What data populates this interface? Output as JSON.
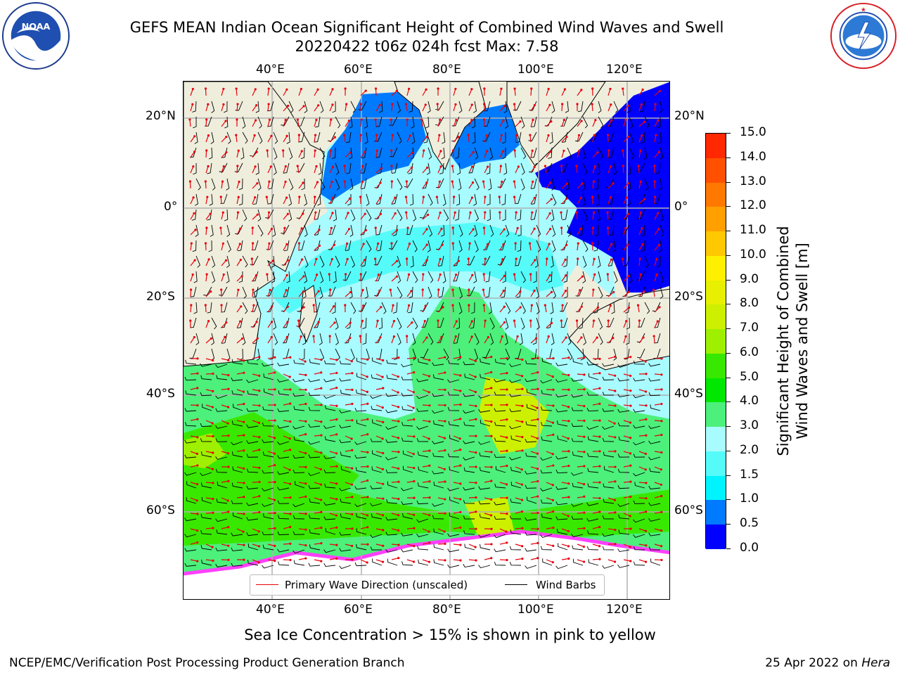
{
  "header": {
    "title": "GEFS MEAN Indian Ocean Significant Height of Combined Wind Waves and Swell",
    "subtitle": "20220422 t06z 024h fcst   Max: 7.58"
  },
  "logos": {
    "left": "noaa-logo",
    "right": "nws-logo",
    "left_ring_text": "NATIONAL OCEANIC AND ATMOSPHERIC ADMINISTRATION · U.S. DEPARTMENT OF COMMERCE",
    "left_center_text": "NOAA",
    "right_ring_text": "NATIONAL WEATHER SERVICE"
  },
  "map": {
    "lon_labels_top": [
      "40°E",
      "60°E",
      "80°E",
      "100°E",
      "120°E"
    ],
    "lon_labels_bottom": [
      "40°E",
      "60°E",
      "80°E",
      "100°E",
      "120°E"
    ],
    "lat_labels_left": [
      "20°N",
      "0°",
      "20°S",
      "40°S",
      "60°S"
    ],
    "lat_labels_right": [
      "20°N",
      "0°",
      "20°S",
      "40°S",
      "60°S"
    ],
    "land_color": "#efeedd",
    "grid_color": "#b0b0b0",
    "wave_arrow_color": "#e8000b",
    "wind_barb_color": "#000000"
  },
  "legend": {
    "wave_label": "Primary Wave Direction (unscaled)",
    "wind_label": "Wind Barbs",
    "wave_color": "#e8000b",
    "wind_color": "#000000"
  },
  "colorbar": {
    "title_line1": "Significant Height of Combined",
    "title_line2": "Wind Waves and Swell [m]",
    "tick_labels": [
      "15.0",
      "14.0",
      "13.0",
      "12.0",
      "11.0",
      "10.0",
      "9.0",
      "8.0",
      "7.0",
      "6.0",
      "5.0",
      "4.0",
      "3.0",
      "2.0",
      "1.5",
      "1.0",
      "0.5",
      "0.0"
    ],
    "colors_top_to_bottom": [
      "#ff0000",
      "#ff2800",
      "#ff5000",
      "#ff7800",
      "#ffa000",
      "#ffc800",
      "#fff000",
      "#e6f000",
      "#cdf000",
      "#9ef000",
      "#38e800",
      "#00e800",
      "#4cf07a",
      "#a8fbff",
      "#55fbf9",
      "#00f4ff",
      "#007aff",
      "#0000ff"
    ]
  },
  "footer": {
    "ice_note": "Sea Ice Concentration > 15% is shown in pink to yellow",
    "credit_left": "NCEP/EMC/Verification Post Processing Product Generation Branch",
    "credit_date": "25 Apr 2022 on ",
    "credit_host": "Hera"
  }
}
